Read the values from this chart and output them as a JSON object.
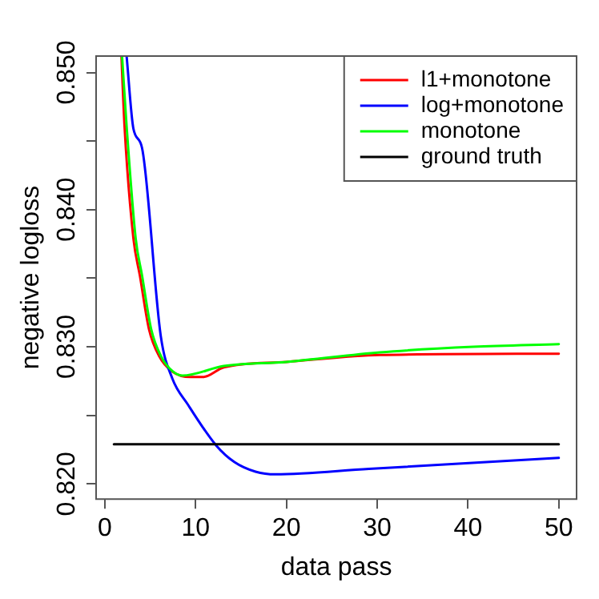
{
  "chart_data": {
    "type": "line",
    "xlabel": "data pass",
    "ylabel": "negative logloss",
    "xlim": [
      -0.96,
      51.96
    ],
    "xticks": [
      0,
      10,
      20,
      30,
      40,
      50
    ],
    "ylim": [
      0.8189,
      0.8512
    ],
    "yticks": [
      {
        "value": 0.82,
        "label": "0.820"
      },
      {
        "value": 0.825,
        "label": null
      },
      {
        "value": 0.83,
        "label": "0.830"
      },
      {
        "value": 0.835,
        "label": null
      },
      {
        "value": 0.84,
        "label": "0.840"
      },
      {
        "value": 0.845,
        "label": null
      },
      {
        "value": 0.85,
        "label": "0.850"
      }
    ],
    "legend": "top right",
    "grid": false,
    "marker": "none",
    "line_style": "solid",
    "series": [
      {
        "name": "l1+monotone",
        "color": "#ff0000",
        "x": [
          1.83,
          2.17,
          3.15,
          3.86,
          4.86,
          6.0,
          7.43,
          9.43,
          10.86,
          13.1,
          20,
          30.3,
          50
        ],
        "values": [
          0.8512,
          0.8461,
          0.8379,
          0.8352,
          0.8313,
          0.8293,
          0.8282,
          0.8278,
          0.8278,
          0.8285,
          0.8289,
          0.8294,
          0.8295
        ]
      },
      {
        "name": "log+monotone",
        "color": "#0000ff",
        "x": [
          2.4,
          3.15,
          4.1,
          6.16,
          7.43,
          9.14,
          12.28,
          14.28,
          16.6,
          18.8,
          29.1,
          50
        ],
        "values": [
          0.8512,
          0.8459,
          0.8445,
          0.8308,
          0.8277,
          0.8258,
          0.8228,
          0.8216,
          0.8209,
          0.8207,
          0.8211,
          0.8219
        ]
      },
      {
        "name": "monotone",
        "color": "#00ff00",
        "x": [
          1.9,
          2.4,
          3.4,
          4.1,
          5.1,
          6.2,
          7.5,
          8.57,
          13.1,
          20,
          30.3,
          40.6,
          50
        ],
        "values": [
          0.8512,
          0.8461,
          0.8379,
          0.8352,
          0.8313,
          0.8293,
          0.8282,
          0.8279,
          0.8286,
          0.8289,
          0.8296,
          0.83,
          0.8302
        ]
      },
      {
        "name": "ground truth",
        "color": "#000000",
        "x": [
          1,
          50
        ],
        "values": [
          0.8229,
          0.8229
        ]
      }
    ]
  }
}
